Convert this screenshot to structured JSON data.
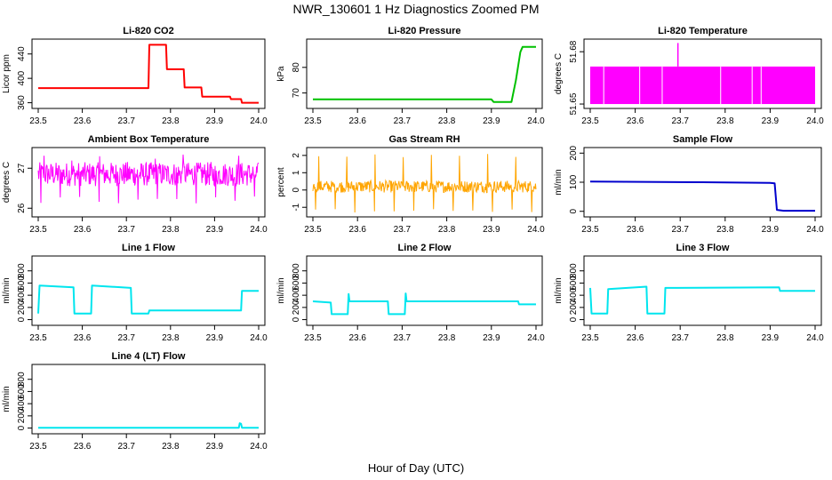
{
  "figure": {
    "title": "NWR_130601  1 Hz Diagnostics Zoomed PM",
    "xlabel": "Hour of Day (UTC)"
  },
  "chart_data": [
    {
      "type": "line",
      "title": "Li-820 CO2",
      "ylabel": "Licor ppm",
      "xlim": [
        23.5,
        24.0
      ],
      "ylim": [
        355,
        460
      ],
      "xticks": [
        "23.5",
        "23.6",
        "23.7",
        "23.8",
        "23.9",
        "24.0"
      ],
      "yticks": [
        360,
        400,
        440
      ],
      "color": "#ff0000",
      "x": [
        23.5,
        23.75,
        23.752,
        23.79,
        23.792,
        23.83,
        23.832,
        23.87,
        23.872,
        23.935,
        23.937,
        23.96,
        23.962,
        24.0
      ],
      "y": [
        384,
        384,
        455,
        455,
        415,
        415,
        385,
        385,
        370,
        370,
        366,
        366,
        360,
        360
      ]
    },
    {
      "type": "line",
      "title": "Li-820 Pressure",
      "ylabel": "kPa",
      "xlim": [
        23.5,
        24.0
      ],
      "ylim": [
        65,
        90
      ],
      "xticks": [
        "23.5",
        "23.6",
        "23.7",
        "23.8",
        "23.9",
        "24.0"
      ],
      "yticks": [
        70,
        80
      ],
      "color": "#00c000",
      "x": [
        23.5,
        23.9,
        23.905,
        23.945,
        23.955,
        23.965,
        23.97,
        24.0
      ],
      "y": [
        67.5,
        67.5,
        66.5,
        66.5,
        75,
        86,
        88,
        88
      ]
    },
    {
      "type": "line",
      "title": "Li-820 Temperature",
      "ylabel": "degrees C",
      "xlim": [
        23.5,
        24.0
      ],
      "ylim": [
        51.649,
        51.6857
      ],
      "xticks": [
        "23.5",
        "23.6",
        "23.7",
        "23.8",
        "23.9",
        "24.0"
      ],
      "yticks": [
        51.65,
        51.68
      ],
      "color": "#ff00ff",
      "band": [
        51.65,
        51.6715
      ],
      "spike_x": 23.695,
      "spike_y": 51.685
    },
    {
      "type": "line",
      "title": "Ambient Box Temperature",
      "ylabel": "degrees C",
      "xlim": [
        23.5,
        24.0
      ],
      "ylim": [
        25.85,
        27.45
      ],
      "xticks": [
        "23.5",
        "23.6",
        "23.7",
        "23.8",
        "23.9",
        "24.0"
      ],
      "yticks": [
        26.0,
        27.0
      ],
      "color": "#ff00ff",
      "mean": 26.85,
      "spread": 0.3,
      "extremes": [
        26.1,
        27.35
      ]
    },
    {
      "type": "line",
      "title": "Gas Stream RH",
      "ylabel": "percent",
      "xlim": [
        23.5,
        24.0
      ],
      "ylim": [
        -1.4,
        2.3
      ],
      "xticks": [
        "23.5",
        "23.6",
        "23.7",
        "23.8",
        "23.9",
        "24.0"
      ],
      "yticks": [
        -1,
        0,
        1,
        2
      ],
      "color": "#ffa500",
      "mean": 0.2,
      "spread": 0.35,
      "extremes": [
        -1.3,
        2.1
      ]
    },
    {
      "type": "line",
      "title": "Sample Flow",
      "ylabel": "ml/min",
      "xlim": [
        23.5,
        24.0
      ],
      "ylim": [
        -10,
        210
      ],
      "xticks": [
        "23.5",
        "23.6",
        "23.7",
        "23.8",
        "23.9",
        "24.0"
      ],
      "yticks": [
        0,
        100,
        200
      ],
      "color": "#0000cd",
      "x": [
        23.5,
        23.75,
        23.9,
        23.91,
        23.915,
        23.93,
        24.0
      ],
      "y": [
        102,
        100,
        98,
        96,
        5,
        2,
        2
      ]
    },
    {
      "type": "line",
      "title": "Line 1 Flow",
      "ylabel": "ml/min",
      "xlim": [
        23.5,
        24.0
      ],
      "ylim": [
        -50,
        1000
      ],
      "xticks": [
        "23.5",
        "23.6",
        "23.7",
        "23.8",
        "23.9",
        "24.0"
      ],
      "yticks": [
        0,
        200,
        400,
        600,
        800
      ],
      "color": "#00e5ee",
      "x": [
        23.5,
        23.503,
        23.58,
        23.582,
        23.62,
        23.622,
        23.71,
        23.712,
        23.75,
        23.752,
        23.96,
        23.962,
        24.0
      ],
      "y": [
        100,
        560,
        530,
        100,
        100,
        560,
        520,
        100,
        100,
        150,
        150,
        470,
        470
      ]
    },
    {
      "type": "line",
      "title": "Line 2 Flow",
      "ylabel": "ml/min",
      "xlim": [
        23.5,
        24.0
      ],
      "ylim": [
        -50,
        1000
      ],
      "xticks": [
        "23.5",
        "23.6",
        "23.7",
        "23.8",
        "23.9",
        "24.0"
      ],
      "yticks": [
        0,
        200,
        400,
        600,
        800
      ],
      "color": "#00e5ee",
      "x": [
        23.5,
        23.54,
        23.542,
        23.578,
        23.58,
        23.582,
        23.65,
        23.668,
        23.67,
        23.706,
        23.708,
        23.71,
        23.96,
        23.962,
        24.0
      ],
      "y": [
        300,
        280,
        90,
        90,
        420,
        300,
        300,
        300,
        90,
        90,
        430,
        300,
        300,
        250,
        250
      ]
    },
    {
      "type": "line",
      "title": "Line 3 Flow",
      "ylabel": "ml/min",
      "xlim": [
        23.5,
        24.0
      ],
      "ylim": [
        -50,
        1000
      ],
      "xticks": [
        "23.5",
        "23.6",
        "23.7",
        "23.8",
        "23.9",
        "24.0"
      ],
      "yticks": [
        0,
        200,
        400,
        600,
        800
      ],
      "color": "#00e5ee",
      "x": [
        23.5,
        23.503,
        23.505,
        23.538,
        23.54,
        23.625,
        23.627,
        23.665,
        23.667,
        23.92,
        23.922,
        24.0
      ],
      "y": [
        520,
        100,
        100,
        100,
        500,
        540,
        100,
        100,
        520,
        530,
        470,
        470
      ]
    },
    {
      "type": "line",
      "title": "Line 4 (LT) Flow",
      "ylabel": "ml/min",
      "xlim": [
        23.5,
        24.0
      ],
      "ylim": [
        -50,
        1000
      ],
      "xticks": [
        "23.5",
        "23.6",
        "23.7",
        "23.8",
        "23.9",
        "24.0"
      ],
      "yticks": [
        0,
        200,
        400,
        600,
        800
      ],
      "color": "#00e5ee",
      "x": [
        23.5,
        23.955,
        23.957,
        23.96,
        23.962,
        24.0
      ],
      "y": [
        5,
        5,
        80,
        70,
        5,
        5
      ]
    }
  ]
}
